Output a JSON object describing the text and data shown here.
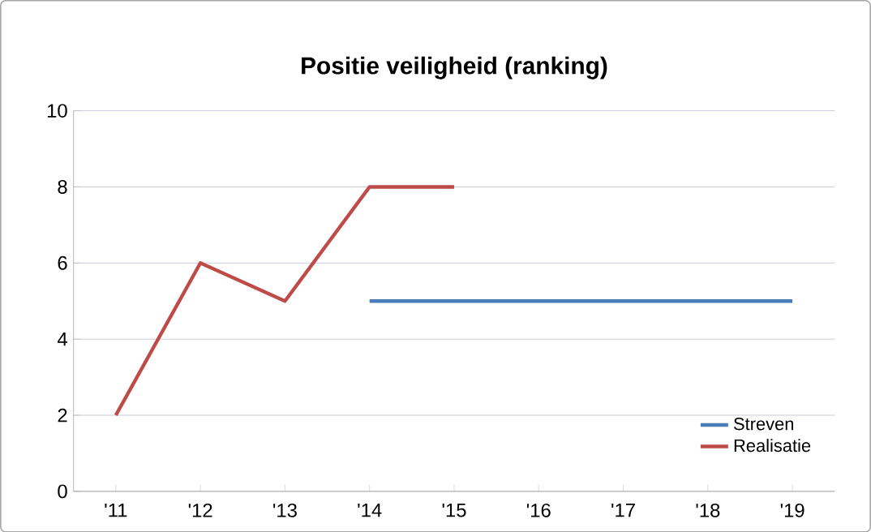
{
  "chart_data": {
    "type": "line",
    "title": "Positie veiligheid (ranking)",
    "categories": [
      "'11",
      "'12",
      "'13",
      "'14",
      "'15",
      "'16",
      "'17",
      "'18",
      "'19"
    ],
    "series": [
      {
        "name": "Streven",
        "color": "#4a7ebb",
        "values": [
          null,
          null,
          null,
          5,
          5,
          5,
          5,
          5,
          5
        ]
      },
      {
        "name": "Realisatie",
        "color": "#be4b48",
        "values": [
          2,
          6,
          5,
          8,
          8,
          null,
          null,
          null,
          null
        ]
      }
    ],
    "ylim": [
      0,
      10
    ],
    "yticks": [
      0,
      2,
      4,
      6,
      8,
      10
    ],
    "grid": "y",
    "legend": "bottom right",
    "marker": "none",
    "line_style": "solid"
  }
}
